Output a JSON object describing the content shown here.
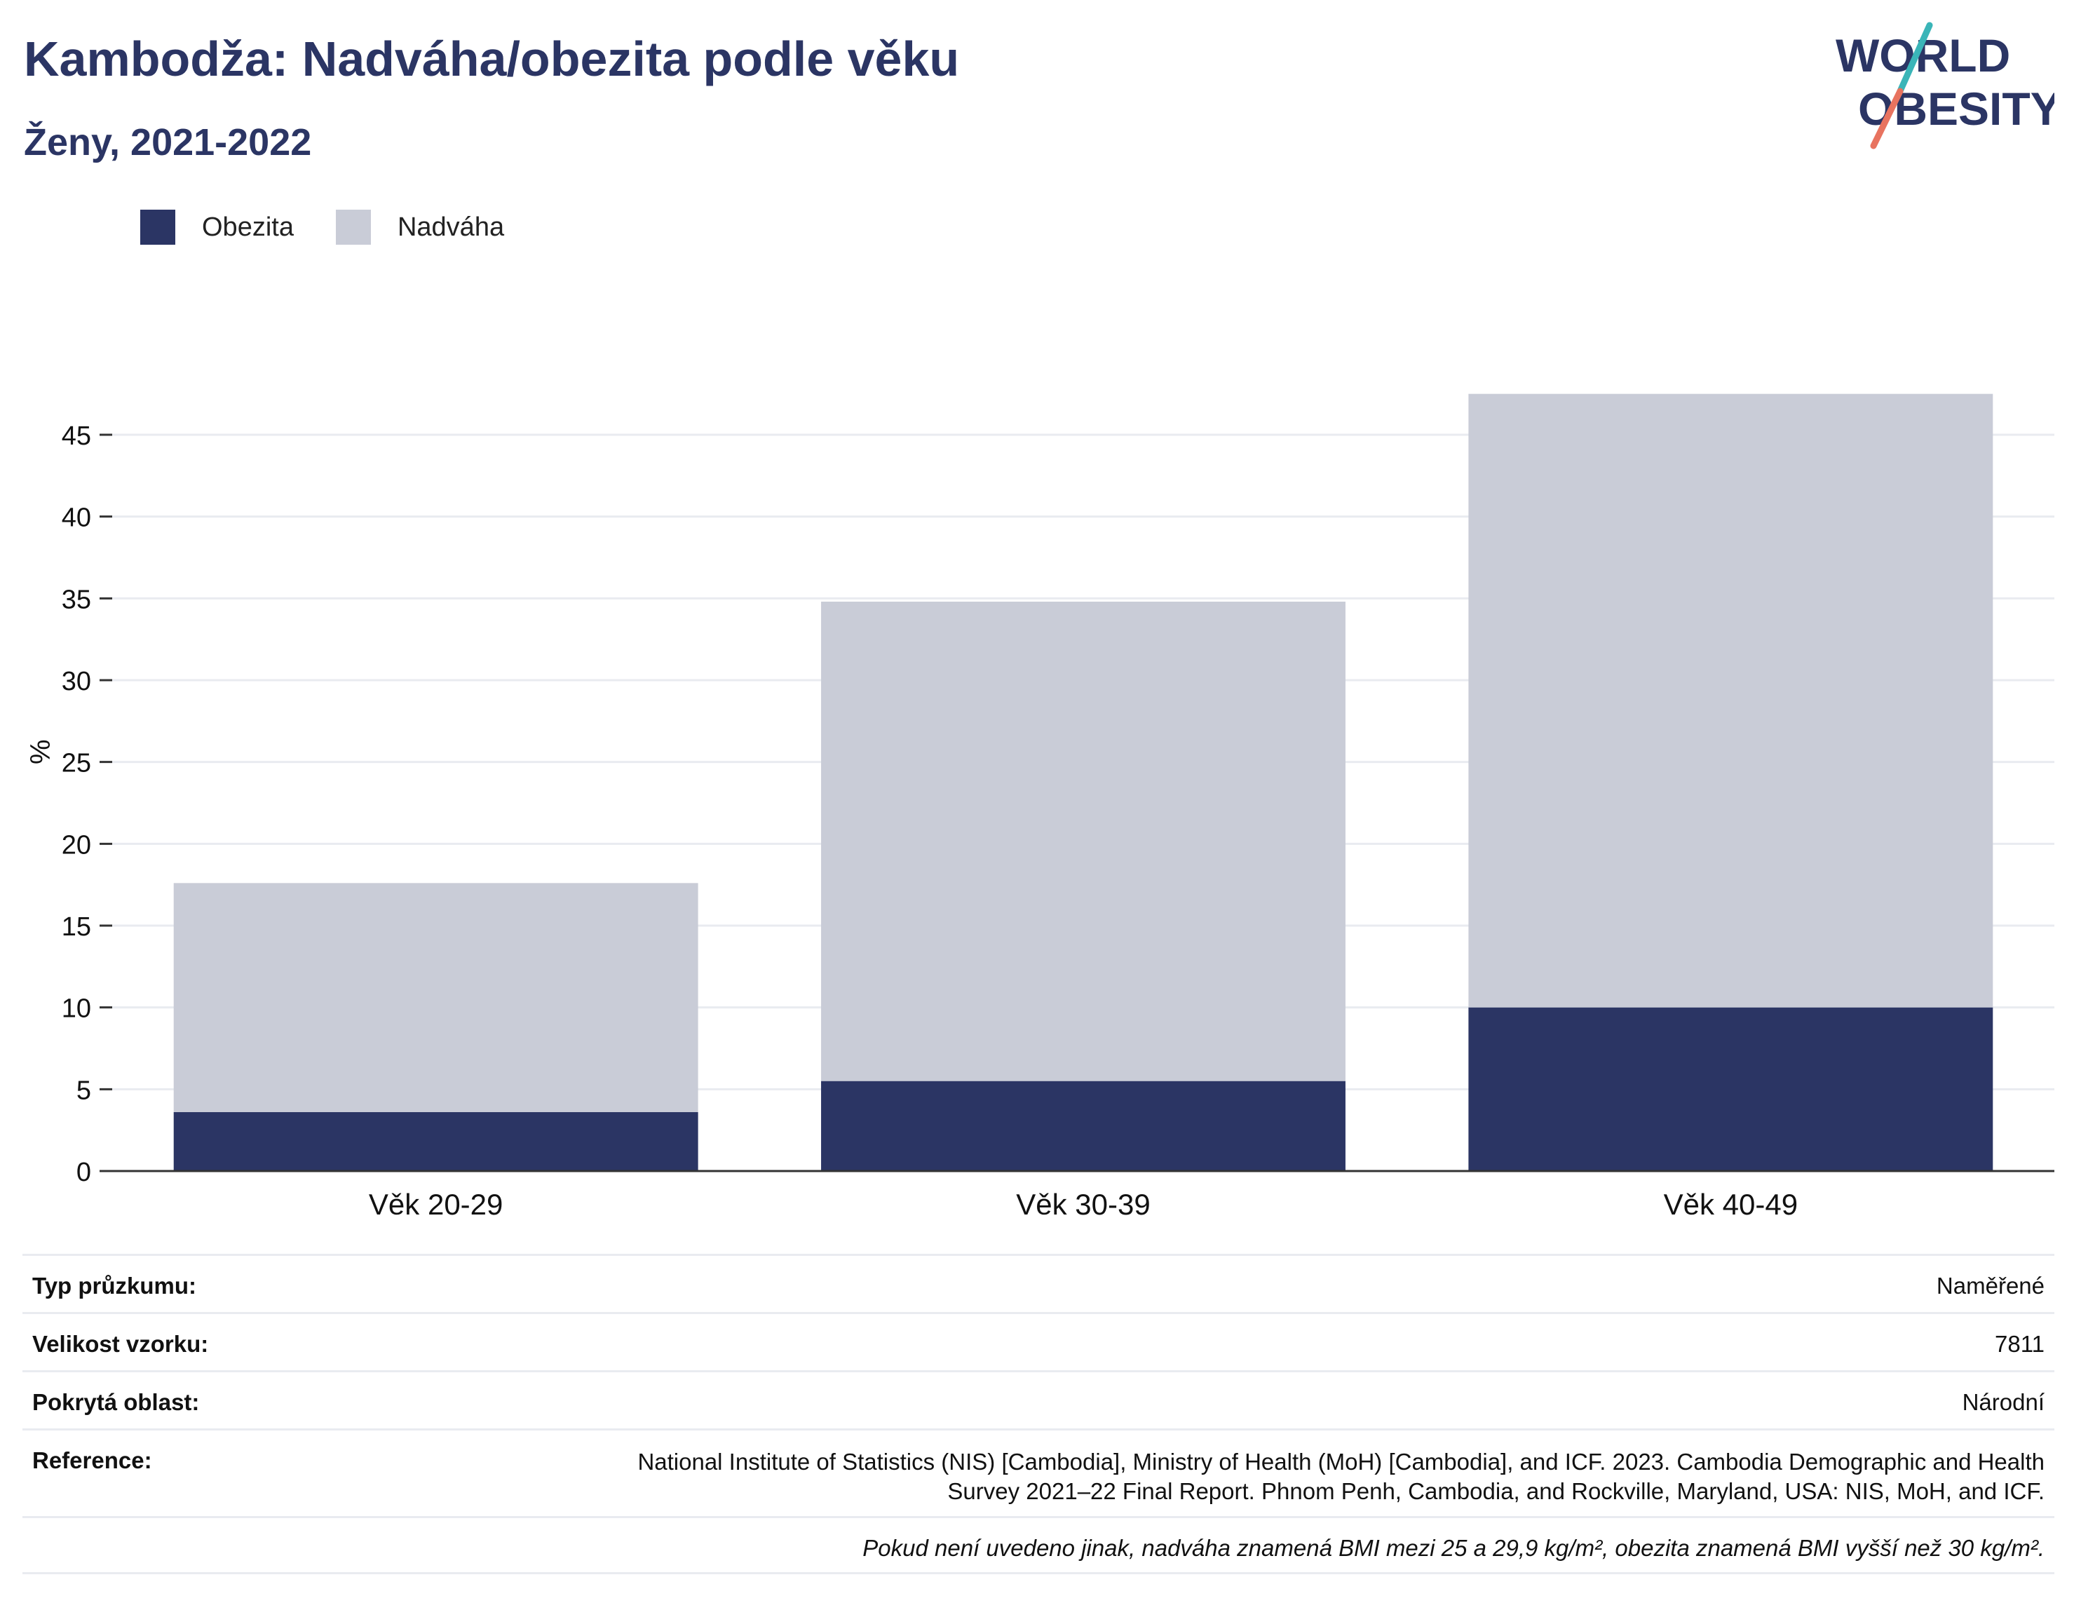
{
  "header": {
    "title": "Kambodža: Nadváha/obezita podle věku",
    "subtitle": "Ženy, 2021-2022"
  },
  "logo": {
    "line1": "WORLD",
    "line2": "OBESITY",
    "accent_teal": "#3ab5b8",
    "accent_coral": "#e8735f"
  },
  "colors": {
    "obezita": "#2b3564",
    "nadvaha": "#c9ccd7",
    "text_dark": "#2b3564"
  },
  "legend": [
    {
      "label": "Obezita",
      "color": "#2b3564"
    },
    {
      "label": "Nadváha",
      "color": "#c9ccd7"
    }
  ],
  "chart_data": {
    "type": "bar",
    "stacked": true,
    "categories": [
      "Věk 20-29",
      "Věk 30-39",
      "Věk 40-49"
    ],
    "series": [
      {
        "name": "Obezita",
        "values": [
          3.6,
          5.5,
          10.0
        ]
      },
      {
        "name": "Nadváha",
        "values": [
          14.0,
          29.3,
          37.5
        ]
      }
    ],
    "totals": [
      17.6,
      34.8,
      47.5
    ],
    "ylabel": "%",
    "ylim": [
      0,
      48
    ],
    "yticks": [
      0,
      5,
      10,
      15,
      20,
      25,
      30,
      35,
      40,
      45
    ],
    "grid": true,
    "legend_position": "top-left"
  },
  "info": {
    "survey_type_label": "Typ průzkumu:",
    "survey_type_value": "Naměřené",
    "sample_size_label": "Velikost vzorku:",
    "sample_size_value": "7811",
    "coverage_label": "Pokrytá oblast:",
    "coverage_value": "Národní",
    "reference_label": "Reference:",
    "reference_value": "National Institute of Statistics (NIS) [Cambodia], Ministry of Health (MoH) [Cambodia], and ICF. 2023. Cambodia Demographic and Health Survey 2021–22 Final Report. Phnom Penh, Cambodia, and Rockville, Maryland, USA: NIS, MoH, and ICF.",
    "note": "Pokud není uvedeno jinak, nadváha znamená BMI mezi 25 a 29,9 kg/m², obezita znamená BMI vyšší než 30 kg/m²."
  }
}
